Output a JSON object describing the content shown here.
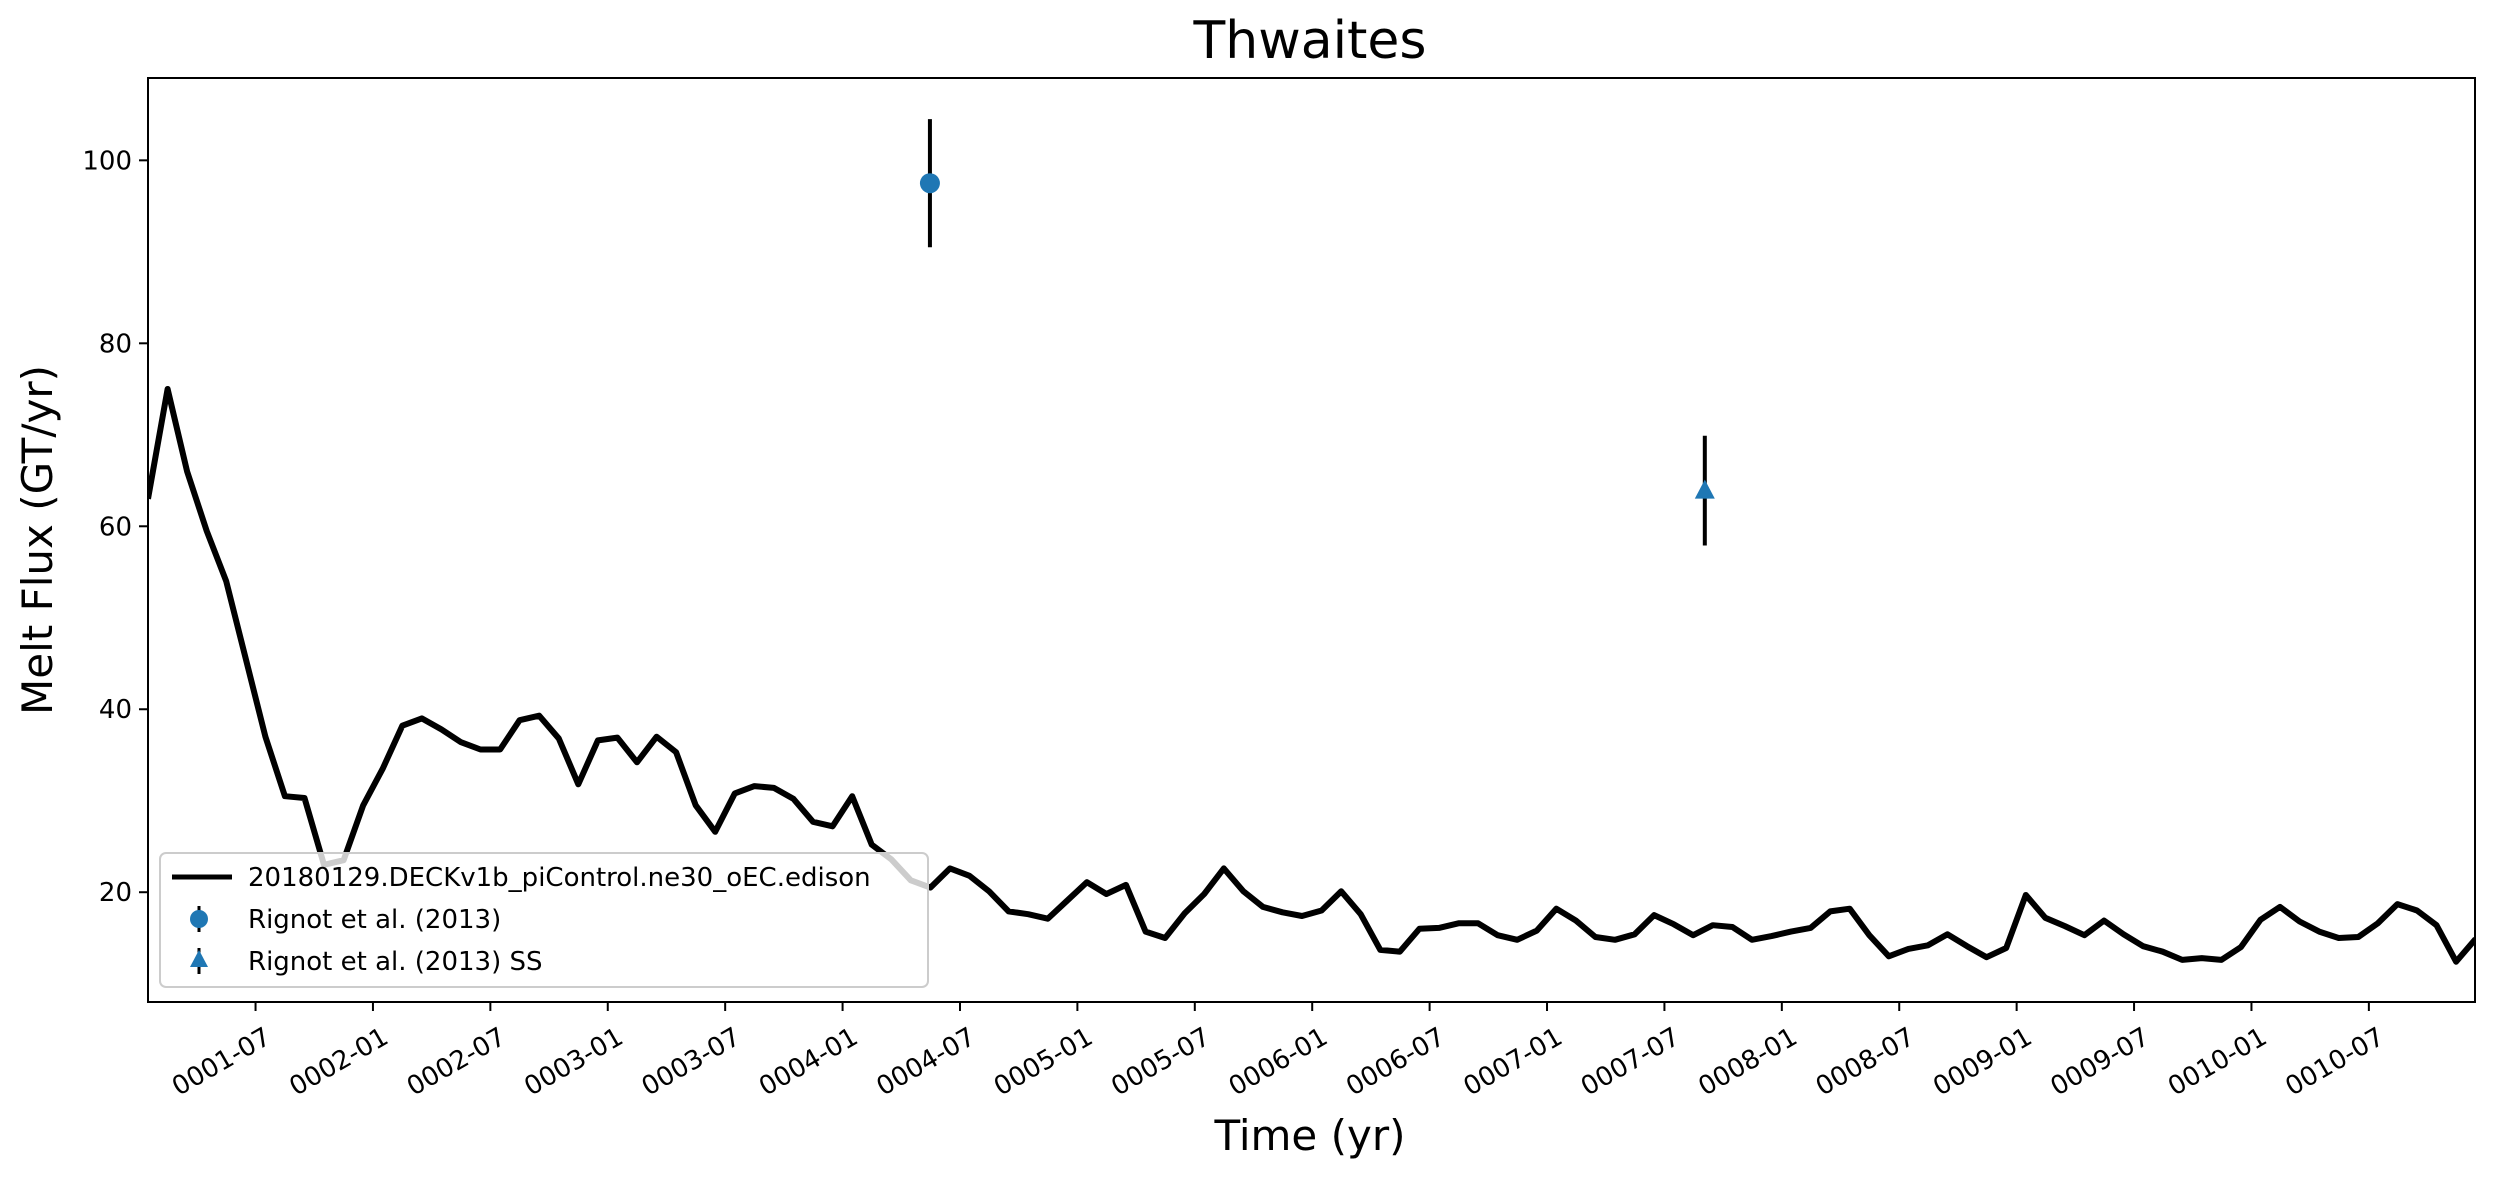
{
  "chart_data": {
    "type": "line",
    "title": "Thwaites",
    "xlabel": "Time (yr)",
    "ylabel": "Melt Flux (GT/yr)",
    "ylim": [
      8,
      109
    ],
    "xlim": [
      0.0,
      9.91
    ],
    "grid": false,
    "legend_position": "lower-left",
    "y_ticks": [
      20,
      40,
      60,
      80,
      100
    ],
    "x_ticks": [
      {
        "value": 0.458,
        "label": "0001-07"
      },
      {
        "value": 0.958,
        "label": "0002-01"
      },
      {
        "value": 1.458,
        "label": "0002-07"
      },
      {
        "value": 1.958,
        "label": "0003-01"
      },
      {
        "value": 2.458,
        "label": "0003-07"
      },
      {
        "value": 2.958,
        "label": "0004-01"
      },
      {
        "value": 3.458,
        "label": "0004-07"
      },
      {
        "value": 3.958,
        "label": "0005-01"
      },
      {
        "value": 4.458,
        "label": "0005-07"
      },
      {
        "value": 4.958,
        "label": "0006-01"
      },
      {
        "value": 5.458,
        "label": "0006-07"
      },
      {
        "value": 5.958,
        "label": "0007-01"
      },
      {
        "value": 6.458,
        "label": "0007-07"
      },
      {
        "value": 6.958,
        "label": "0008-01"
      },
      {
        "value": 7.458,
        "label": "0008-07"
      },
      {
        "value": 7.958,
        "label": "0009-01"
      },
      {
        "value": 8.458,
        "label": "0009-07"
      },
      {
        "value": 8.958,
        "label": "0010-01"
      },
      {
        "value": 9.458,
        "label": "0010-07"
      }
    ],
    "series": [
      {
        "name": "20180129.DECKv1b_piControl.ne30_oEC.edison",
        "color": "#000000",
        "x_step": 0.0833,
        "x_start": 0.0,
        "values": [
          63,
          75,
          66,
          59.5,
          54,
          45.5,
          37,
          30.5,
          30.3,
          23,
          23.5,
          29.5,
          33.5,
          38.2,
          39,
          37.8,
          36.4,
          35.6,
          35.6,
          38.8,
          39.3,
          36.8,
          31.8,
          36.6,
          36.9,
          34.2,
          37,
          35.3,
          29.5,
          26.6,
          30.8,
          31.6,
          31.4,
          30.2,
          27.7,
          27.2,
          30.5,
          25.2,
          23.6,
          21.3,
          20.5,
          22.6,
          21.8,
          20.1,
          17.9,
          17.6,
          17.1,
          19.1,
          21.1,
          19.8,
          20.8,
          15.7,
          15,
          17.7,
          19.8,
          22.6,
          20.1,
          18.4,
          17.8,
          17.4,
          18,
          20.1,
          17.6,
          13.7,
          13.5,
          16,
          16.1,
          16.6,
          16.6,
          15.3,
          14.8,
          15.8,
          18.2,
          16.9,
          15.1,
          14.8,
          15.4,
          17.5,
          16.5,
          15.3,
          16.4,
          16.2,
          14.8,
          15.2,
          15.7,
          16.1,
          17.9,
          18.2,
          15.3,
          13,
          13.8,
          14.2,
          15.4,
          14.1,
          12.9,
          13.9,
          19.7,
          17.2,
          16.3,
          15.3,
          16.9,
          15.4,
          14.1,
          13.5,
          12.6,
          12.8,
          12.6,
          14,
          17,
          18.4,
          16.8,
          15.7,
          15,
          15.1,
          16.6,
          18.7,
          18,
          16.4,
          12.4,
          14.9
        ]
      },
      {
        "name": "Rignot et al. (2013)",
        "color": "#1f77b4",
        "marker": "circle",
        "x": 3.33,
        "y": 97.5,
        "yerr": 7
      },
      {
        "name": "Rignot et al. (2013) SS",
        "color": "#1f77b4",
        "marker": "triangle",
        "x": 6.63,
        "y": 63.9,
        "yerr": 6
      }
    ]
  }
}
